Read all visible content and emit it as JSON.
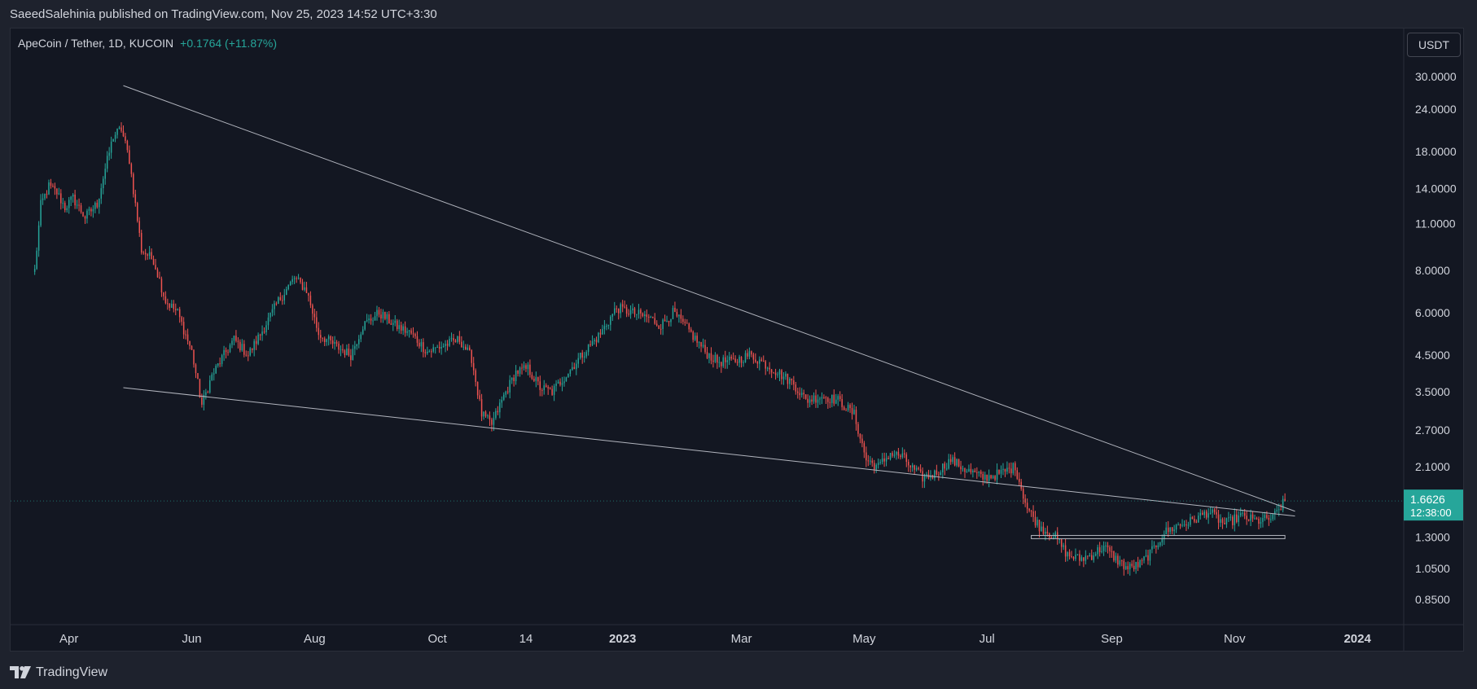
{
  "header": {
    "published": "SaeedSalehinia published on TradingView.com, Nov 25, 2023 14:52 UTC+3:30"
  },
  "legend": {
    "symbol": "ApeCoin / Tether, 1D, KUCOIN",
    "change": "+0.1764 (+11.87%)"
  },
  "currency": "USDT",
  "footer": {
    "brand": "TradingView"
  },
  "price_badge": {
    "price": "1.6626",
    "countdown": "12:38:00"
  },
  "colors": {
    "background": "#131722",
    "frame": "#1e222d",
    "up": "#26a69a",
    "down": "#ef5350",
    "trendline": "#b2b5be",
    "text": "#d1d4dc"
  },
  "chart_data": {
    "type": "candlestick",
    "title": "ApeCoin / Tether, 1D, KUCOIN",
    "scale": "log",
    "ylim": [
      0.74,
      36
    ],
    "y_ticks": [
      {
        "value": 30,
        "label": "30.0000"
      },
      {
        "value": 24,
        "label": "24.0000"
      },
      {
        "value": 18,
        "label": "18.0000"
      },
      {
        "value": 14,
        "label": "14.0000"
      },
      {
        "value": 11,
        "label": "11.0000"
      },
      {
        "value": 8,
        "label": "8.0000"
      },
      {
        "value": 6,
        "label": "6.0000"
      },
      {
        "value": 4.5,
        "label": "4.5000"
      },
      {
        "value": 3.5,
        "label": "3.5000"
      },
      {
        "value": 2.7,
        "label": "2.7000"
      },
      {
        "value": 2.1,
        "label": "2.1000"
      },
      {
        "value": 1.3,
        "label": "1.3000"
      },
      {
        "value": 1.05,
        "label": "1.0500"
      },
      {
        "value": 0.85,
        "label": "0.8500"
      }
    ],
    "x_ticks": [
      {
        "label": "Apr",
        "day": 14,
        "bold": false
      },
      {
        "label": "Jun",
        "day": 75,
        "bold": false
      },
      {
        "label": "Aug",
        "day": 136,
        "bold": false
      },
      {
        "label": "Oct",
        "day": 197,
        "bold": false
      },
      {
        "label": "14",
        "day": 241,
        "bold": false
      },
      {
        "label": "2023",
        "day": 289,
        "bold": true
      },
      {
        "label": "Mar",
        "day": 348,
        "bold": false
      },
      {
        "label": "May",
        "day": 409,
        "bold": false
      },
      {
        "label": "Jul",
        "day": 470,
        "bold": false
      },
      {
        "label": "Sep",
        "day": 532,
        "bold": false
      },
      {
        "label": "Nov",
        "day": 593,
        "bold": false
      },
      {
        "label": "2024",
        "day": 654,
        "bold": true
      }
    ],
    "x_range_days": [
      -15,
      677
    ],
    "last_price": 1.6626,
    "last_day": 618,
    "path_anchors": [
      [
        -3,
        8.0
      ],
      [
        0,
        12.5
      ],
      [
        4,
        14.2
      ],
      [
        8,
        13.6
      ],
      [
        12,
        12.3
      ],
      [
        16,
        13.1
      ],
      [
        22,
        11.5
      ],
      [
        28,
        12.6
      ],
      [
        32,
        16.0
      ],
      [
        36,
        20.0
      ],
      [
        40,
        21.0
      ],
      [
        44,
        17.0
      ],
      [
        50,
        9.2
      ],
      [
        56,
        8.6
      ],
      [
        62,
        6.5
      ],
      [
        68,
        6.0
      ],
      [
        75,
        4.6
      ],
      [
        80,
        3.2
      ],
      [
        85,
        3.9
      ],
      [
        90,
        4.4
      ],
      [
        96,
        5.0
      ],
      [
        103,
        4.5
      ],
      [
        110,
        5.3
      ],
      [
        118,
        6.5
      ],
      [
        126,
        7.6
      ],
      [
        132,
        7.0
      ],
      [
        138,
        5.2
      ],
      [
        146,
        4.8
      ],
      [
        154,
        4.5
      ],
      [
        160,
        5.5
      ],
      [
        168,
        6.0
      ],
      [
        176,
        5.5
      ],
      [
        184,
        5.2
      ],
      [
        192,
        4.6
      ],
      [
        200,
        4.8
      ],
      [
        208,
        5.0
      ],
      [
        214,
        4.4
      ],
      [
        219,
        3.0
      ],
      [
        224,
        2.8
      ],
      [
        230,
        3.4
      ],
      [
        236,
        4.0
      ],
      [
        242,
        4.1
      ],
      [
        248,
        3.6
      ],
      [
        254,
        3.5
      ],
      [
        262,
        4.0
      ],
      [
        270,
        4.6
      ],
      [
        278,
        5.2
      ],
      [
        286,
        6.2
      ],
      [
        294,
        6.0
      ],
      [
        302,
        5.8
      ],
      [
        308,
        5.5
      ],
      [
        314,
        6.0
      ],
      [
        322,
        5.3
      ],
      [
        330,
        4.6
      ],
      [
        336,
        4.3
      ],
      [
        344,
        4.3
      ],
      [
        352,
        4.5
      ],
      [
        358,
        4.3
      ],
      [
        366,
        4.0
      ],
      [
        374,
        3.7
      ],
      [
        380,
        3.3
      ],
      [
        388,
        3.4
      ],
      [
        396,
        3.3
      ],
      [
        404,
        3.0
      ],
      [
        410,
        2.2
      ],
      [
        416,
        2.1
      ],
      [
        422,
        2.3
      ],
      [
        428,
        2.25
      ],
      [
        432,
        2.1
      ],
      [
        438,
        1.95
      ],
      [
        444,
        2.0
      ],
      [
        452,
        2.2
      ],
      [
        460,
        2.05
      ],
      [
        468,
        1.95
      ],
      [
        476,
        2.0
      ],
      [
        484,
        2.1
      ],
      [
        490,
        1.58
      ],
      [
        496,
        1.4
      ],
      [
        504,
        1.3
      ],
      [
        510,
        1.15
      ],
      [
        516,
        1.12
      ],
      [
        522,
        1.15
      ],
      [
        528,
        1.22
      ],
      [
        534,
        1.12
      ],
      [
        540,
        1.05
      ],
      [
        546,
        1.08
      ],
      [
        552,
        1.18
      ],
      [
        558,
        1.34
      ],
      [
        564,
        1.4
      ],
      [
        572,
        1.45
      ],
      [
        580,
        1.55
      ],
      [
        588,
        1.42
      ],
      [
        596,
        1.5
      ],
      [
        604,
        1.45
      ],
      [
        612,
        1.48
      ],
      [
        618,
        1.6626
      ]
    ],
    "trendlines": [
      {
        "name": "upper-resistance",
        "from": {
          "day": 41,
          "price": 28.2
        },
        "to": {
          "day": 623,
          "price": 1.55
        }
      },
      {
        "name": "lower-support",
        "from": {
          "day": 41,
          "price": 3.6
        },
        "to": {
          "day": 623,
          "price": 1.5
        }
      },
      {
        "name": "horizontal-support",
        "from": {
          "day": 492,
          "price": 1.3
        },
        "to": {
          "day": 618,
          "price": 1.3
        }
      }
    ]
  }
}
